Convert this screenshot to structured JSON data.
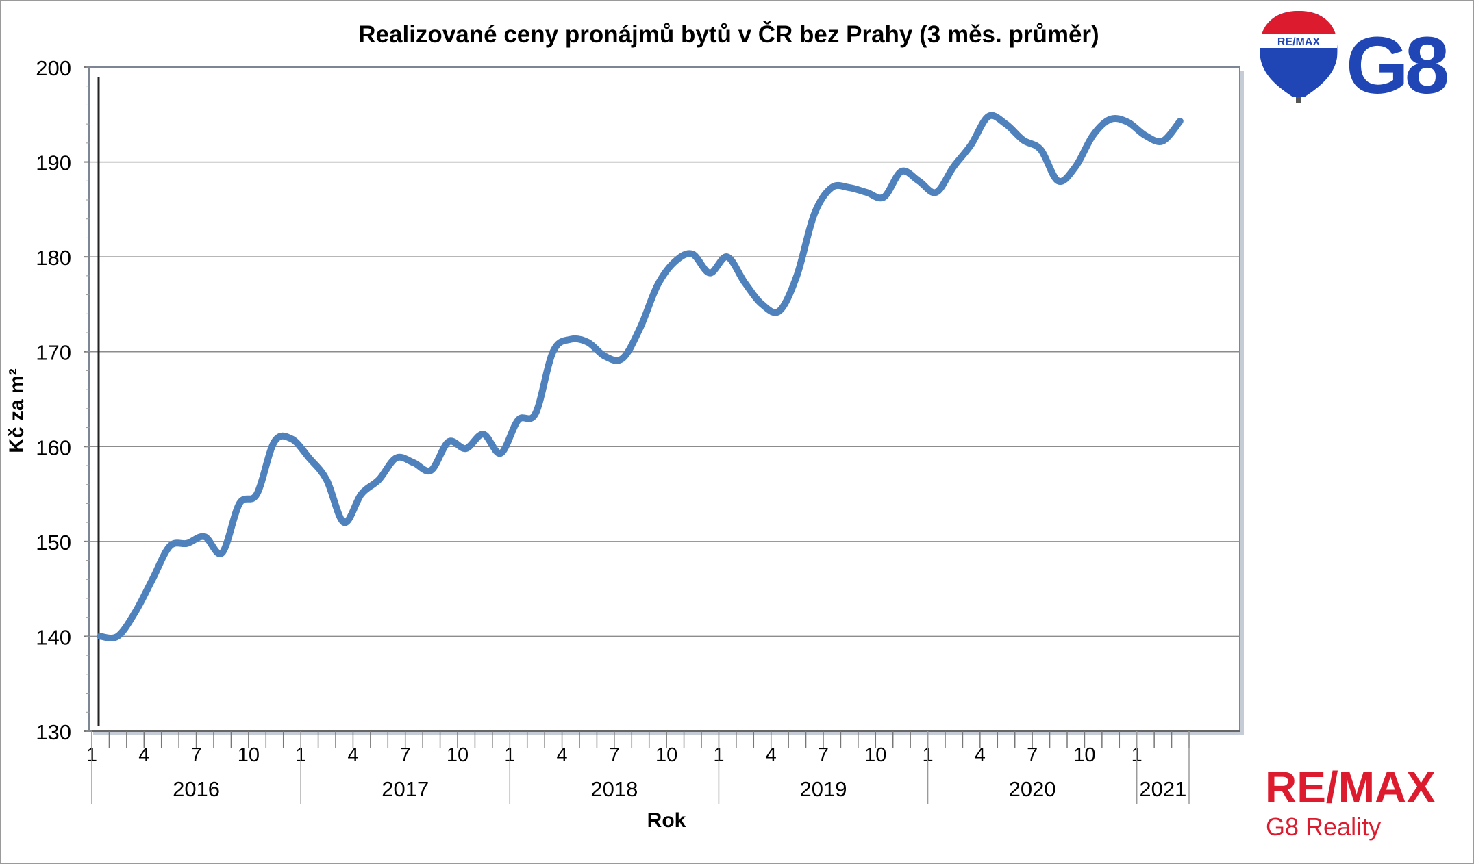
{
  "chart_data": {
    "type": "line",
    "title": "Realizované ceny pronájmů bytů v ČR bez Prahy (3 měs. průměr)",
    "xlabel": "Rok",
    "ylabel": "Kč za m²",
    "ylim": [
      130,
      200
    ],
    "yticks": [
      "130",
      "140",
      "150",
      "160",
      "170",
      "180",
      "190",
      "200"
    ],
    "grid": true,
    "line_color": "#4f81bd",
    "month_tick_labels": [
      "1",
      "4",
      "7",
      "10"
    ],
    "years": [
      "2016",
      "2017",
      "2018",
      "2019",
      "2020",
      "2021"
    ],
    "series": [
      {
        "x": [
          "2016-01",
          "2016-02",
          "2016-03",
          "2016-04",
          "2016-05",
          "2016-06",
          "2016-07",
          "2016-08",
          "2016-09",
          "2016-10",
          "2016-11",
          "2016-12",
          "2017-01",
          "2017-02",
          "2017-03",
          "2017-04",
          "2017-05",
          "2017-06",
          "2017-07",
          "2017-08",
          "2017-09",
          "2017-10",
          "2017-11",
          "2017-12",
          "2018-01",
          "2018-02",
          "2018-03",
          "2018-04",
          "2018-05",
          "2018-06",
          "2018-07",
          "2018-08",
          "2018-09",
          "2018-10",
          "2018-11",
          "2018-12",
          "2019-01",
          "2019-02",
          "2019-03",
          "2019-04",
          "2019-05",
          "2019-06",
          "2019-07",
          "2019-08",
          "2019-09",
          "2019-10",
          "2019-11",
          "2019-12",
          "2020-01",
          "2020-02",
          "2020-03",
          "2020-04",
          "2020-05",
          "2020-06",
          "2020-07",
          "2020-08",
          "2020-09",
          "2020-10",
          "2020-11",
          "2020-12",
          "2021-01",
          "2021-02",
          "2021-03"
        ],
        "values": [
          140,
          140,
          142.5,
          146,
          149.5,
          149.8,
          150.5,
          148.8,
          154,
          155,
          160.5,
          160.8,
          158.8,
          156.5,
          152,
          155,
          156.5,
          158.8,
          158.3,
          157.5,
          160.5,
          159.8,
          161.3,
          159.3,
          162.8,
          163.5,
          170,
          171.3,
          171,
          169.5,
          169.3,
          172.5,
          177,
          179.5,
          180.3,
          178.3,
          180,
          177.3,
          175,
          174.3,
          178,
          184.5,
          187.3,
          187.3,
          186.8,
          186.3,
          189,
          188,
          186.8,
          189.5,
          191.8,
          194.8,
          194,
          192.3,
          191.3,
          188,
          189.5,
          192.8,
          194.5,
          194.2,
          192.8,
          192.2,
          194.3
        ]
      }
    ]
  },
  "branding": {
    "balloon_text": "RE/MAX",
    "g8_text": "G8",
    "remax_text": "RE/MAX",
    "reality_text": "G8 Reality",
    "red": "#dc1c2e",
    "blue": "#1f46b4"
  }
}
